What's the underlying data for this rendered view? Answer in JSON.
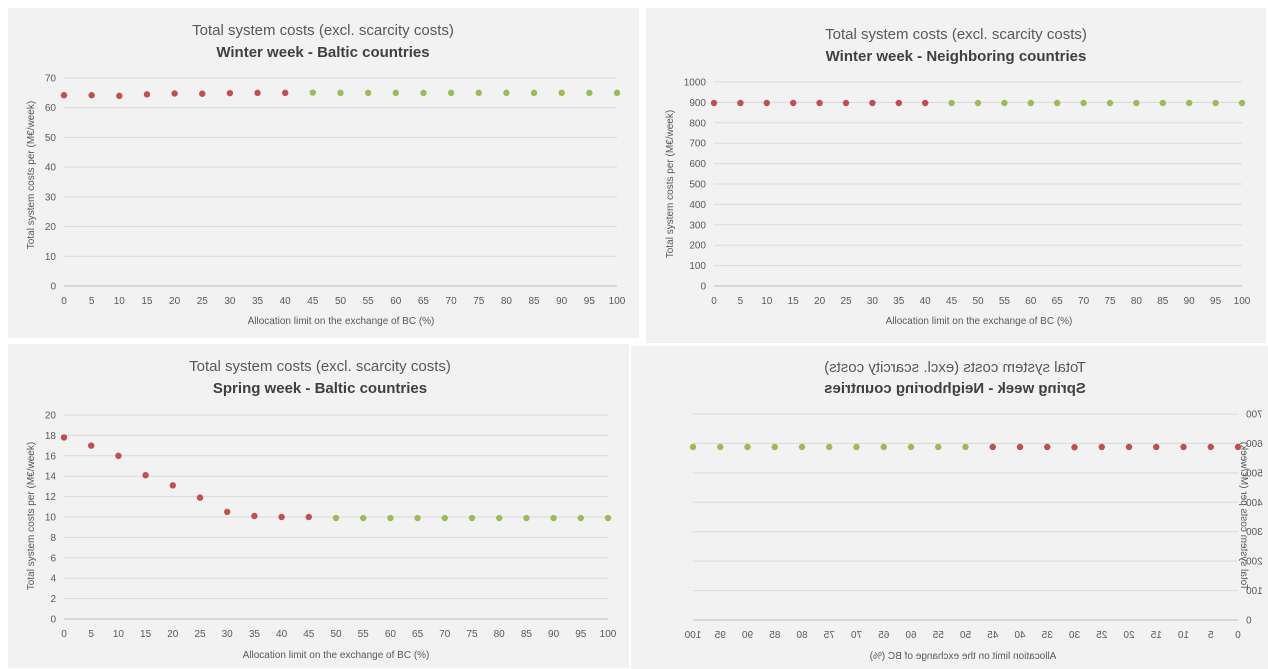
{
  "colors": {
    "red": "#c0504d",
    "green": "#9bbb59"
  },
  "chart_data": [
    {
      "type": "scatter",
      "title": "Total system costs (excl. scarcity costs)",
      "subtitle": "Winter week - Baltic countries",
      "xlabel": "Allocation limit on the exchange of BC (%)",
      "ylabel": "Total system costs per (M€/week)",
      "xlim": [
        0,
        100
      ],
      "ylim": [
        0,
        70
      ],
      "yticks": [
        "0",
        "10",
        "20",
        "30",
        "40",
        "50",
        "60",
        "70"
      ],
      "xticks": [
        "0",
        "5",
        "10",
        "15",
        "20",
        "25",
        "30",
        "35",
        "40",
        "45",
        "50",
        "55",
        "60",
        "65",
        "70",
        "75",
        "80",
        "85",
        "90",
        "95",
        "100"
      ],
      "grid": true,
      "x": [
        0,
        5,
        10,
        15,
        20,
        25,
        30,
        35,
        40,
        45,
        50,
        55,
        60,
        65,
        70,
        75,
        80,
        85,
        90,
        95,
        100
      ],
      "y": [
        64.2,
        64.2,
        64.0,
        64.5,
        64.8,
        64.7,
        64.9,
        65.0,
        65.0,
        65.1,
        65.0,
        65.0,
        65.0,
        65.0,
        65.0,
        65.0,
        65.0,
        65.0,
        65.0,
        65.0,
        65.0
      ],
      "point_colors": [
        "red",
        "red",
        "red",
        "red",
        "red",
        "red",
        "red",
        "red",
        "red",
        "green",
        "green",
        "green",
        "green",
        "green",
        "green",
        "green",
        "green",
        "green",
        "green",
        "green",
        "green"
      ],
      "mirrored": false
    },
    {
      "type": "scatter",
      "title": "Total system costs (excl. scarcity costs)",
      "subtitle": "Winter week - Neighboring countries",
      "xlabel": "Allocation limit on the exchange of BC (%)",
      "ylabel": "Total system costs per (M€/week)",
      "xlim": [
        0,
        100
      ],
      "ylim": [
        0,
        1000
      ],
      "yticks": [
        "0",
        "100",
        "200",
        "300",
        "400",
        "500",
        "600",
        "700",
        "800",
        "900",
        "1000"
      ],
      "xticks": [
        "0",
        "5",
        "10",
        "15",
        "20",
        "25",
        "30",
        "35",
        "40",
        "45",
        "50",
        "55",
        "60",
        "65",
        "70",
        "75",
        "80",
        "85",
        "90",
        "95",
        "100"
      ],
      "grid": true,
      "x": [
        0,
        5,
        10,
        15,
        20,
        25,
        30,
        35,
        40,
        45,
        50,
        55,
        60,
        65,
        70,
        75,
        80,
        85,
        90,
        95,
        100
      ],
      "y": [
        897,
        897,
        897,
        897,
        897,
        897,
        897,
        897,
        897,
        897,
        897,
        897,
        897,
        897,
        897,
        897,
        897,
        897,
        897,
        897,
        897
      ],
      "point_colors": [
        "red",
        "red",
        "red",
        "red",
        "red",
        "red",
        "red",
        "red",
        "red",
        "green",
        "green",
        "green",
        "green",
        "green",
        "green",
        "green",
        "green",
        "green",
        "green",
        "green",
        "green"
      ],
      "mirrored": false
    },
    {
      "type": "scatter",
      "title": "Total system costs (excl. scarcity costs)",
      "subtitle": "Spring week - Baltic countries",
      "xlabel": "Allocation limit on the exchange of BC (%)",
      "ylabel": "Total system costs per (M€/week)",
      "xlim": [
        0,
        100
      ],
      "ylim": [
        0,
        20
      ],
      "yticks": [
        "0",
        "2",
        "4",
        "6",
        "8",
        "10",
        "12",
        "14",
        "16",
        "18",
        "20"
      ],
      "xticks": [
        "0",
        "5",
        "10",
        "15",
        "20",
        "25",
        "30",
        "35",
        "40",
        "45",
        "50",
        "55",
        "60",
        "65",
        "70",
        "75",
        "80",
        "85",
        "90",
        "95",
        "100"
      ],
      "grid": true,
      "x": [
        0,
        5,
        10,
        15,
        20,
        25,
        30,
        35,
        40,
        45,
        50,
        55,
        60,
        65,
        70,
        75,
        80,
        85,
        90,
        95,
        100
      ],
      "y": [
        17.8,
        17.0,
        16.0,
        14.1,
        13.1,
        11.9,
        10.5,
        10.1,
        10.0,
        10.0,
        9.9,
        9.9,
        9.9,
        9.9,
        9.9,
        9.9,
        9.9,
        9.9,
        9.9,
        9.9,
        9.9
      ],
      "point_colors": [
        "red",
        "red",
        "red",
        "red",
        "red",
        "red",
        "red",
        "red",
        "red",
        "red",
        "green",
        "green",
        "green",
        "green",
        "green",
        "green",
        "green",
        "green",
        "green",
        "green",
        "green"
      ],
      "mirrored": false
    },
    {
      "type": "scatter",
      "title": "Total system costs (excl. scarcity costs)",
      "subtitle": "Spring week - Neighboring countries",
      "xlabel": "Allocation limit on the exchange of BC (%)",
      "ylabel": "Total system costs per (M€/week)",
      "xlim": [
        0,
        100
      ],
      "ylim": [
        0,
        700
      ],
      "yticks": [
        "0",
        "100",
        "200",
        "300",
        "400",
        "500",
        "600",
        "700"
      ],
      "xticks": [
        "0",
        "5",
        "10",
        "15",
        "20",
        "25",
        "30",
        "35",
        "40",
        "45",
        "50",
        "55",
        "60",
        "65",
        "70",
        "75",
        "80",
        "85",
        "90",
        "95",
        "100"
      ],
      "grid": true,
      "x": [
        0,
        5,
        10,
        15,
        20,
        25,
        30,
        35,
        40,
        45,
        50,
        55,
        60,
        65,
        70,
        75,
        80,
        85,
        90,
        95,
        100
      ],
      "y": [
        588,
        588,
        588,
        588,
        588,
        588,
        587,
        588,
        588,
        588,
        588,
        588,
        588,
        588,
        588,
        588,
        588,
        588,
        588,
        588,
        588
      ],
      "point_colors": [
        "red",
        "red",
        "red",
        "red",
        "red",
        "red",
        "red",
        "red",
        "red",
        "red",
        "green",
        "green",
        "green",
        "green",
        "green",
        "green",
        "green",
        "green",
        "green",
        "green",
        "green"
      ],
      "mirrored": true
    }
  ]
}
